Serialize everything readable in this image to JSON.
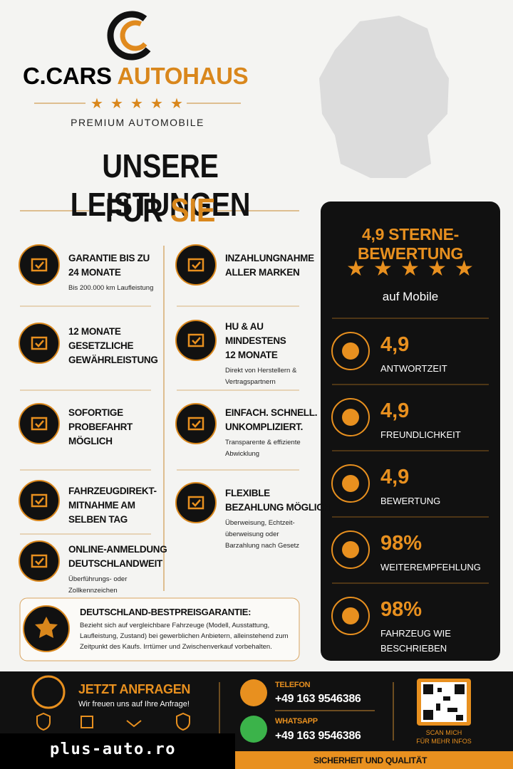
{
  "brand": {
    "name_part1": "C.CARS",
    "name_part2": "AUTOHAUS",
    "tagline": "PREMIUM AUTOMOBILE"
  },
  "headline": {
    "line1": "UNSERE LEISTUNGEN",
    "line2_prefix": "FÜR",
    "line2_highlight": "SIE"
  },
  "services": [
    {
      "title_lines": [
        "GARANTIE BIS ZU",
        "24 MONATE"
      ],
      "subtitle": "Bis 200.000 km Laufleistung"
    },
    {
      "title_lines": [
        "12 MONATE",
        "GESETZLICHE",
        "GEWÄHRLEISTUNG"
      ]
    },
    {
      "title_lines": [
        "SOFORTIGE",
        "PROBEFAHRT",
        "MÖGLICH"
      ]
    },
    {
      "title_lines": [
        "FAHRZEUGDIREKT-",
        "MITNAHME AM",
        "SELBEN TAG"
      ]
    },
    {
      "title_lines": [
        "ONLINE-ANMELDUNG",
        "DEUTSCHLANDWEIT"
      ],
      "subtitle": "Überführungs- oder Zollkennzeichen"
    },
    {
      "title_lines": [
        "INZAHLUNGNAHME",
        "ALLER MARKEN"
      ]
    },
    {
      "title_lines": [
        "HU & AU",
        "MINDESTENS",
        "12 MONATE"
      ],
      "subtitle": "Direkt von Herstellern & Vertragspartnern"
    },
    {
      "title_lines": [
        "EINFACH. SCHNELL.",
        "UNKOMPLIZIERT."
      ],
      "subtitle": "Transparente & effiziente Abwicklung"
    },
    {
      "title_lines": [
        "FLEXIBLE",
        "BEZAHLUNG MÖGLICH"
      ],
      "subtitle": "Überweisung, Echtzeit-überweisung oder Barzahlung nach Gesetz"
    }
  ],
  "guarantee": {
    "title": "DEUTSCHLAND-BESTPREISGARANTIE:",
    "text": "Bezieht sich auf vergleichbare Fahrzeuge (Modell, Ausstattung, Laufleistung, Zustand) bei gewerblichen Anbietern, alleinstehend zum Zeitpunkt des Kaufs. Irrtümer und Zwischenverkauf vorbehalten."
  },
  "rating": {
    "heading": "4,9 STERNE-BEWERTUNG",
    "source": "auf Mobile",
    "metrics": [
      {
        "value": "4,9",
        "label": "ANTWORTZEIT"
      },
      {
        "value": "4,9",
        "label": "FREUNDLICHKEIT"
      },
      {
        "value": "4,9",
        "label": "BEWERTUNG"
      },
      {
        "value": "98%",
        "label": "WEITEREMPFEHLUNG"
      },
      {
        "value": "98%",
        "label": "FAHRZEUG WIE BESCHRIEBEN"
      }
    ]
  },
  "footer": {
    "cta_title": "JETZT ANFRAGEN",
    "cta_text": "Wir freuen uns auf Ihre Anfrage!",
    "phone_label": "TELEFON",
    "phone": "+49 163 9546386",
    "whatsapp_label": "WHATSAPP",
    "whatsapp": "+49 163 9546386",
    "qr_caption_lines": [
      "SCAN MICH",
      "FÜR MEHR INFOS"
    ],
    "band": "SICHERHEIT UND QUALITÄT"
  },
  "watermark": "plus-auto.ro"
}
